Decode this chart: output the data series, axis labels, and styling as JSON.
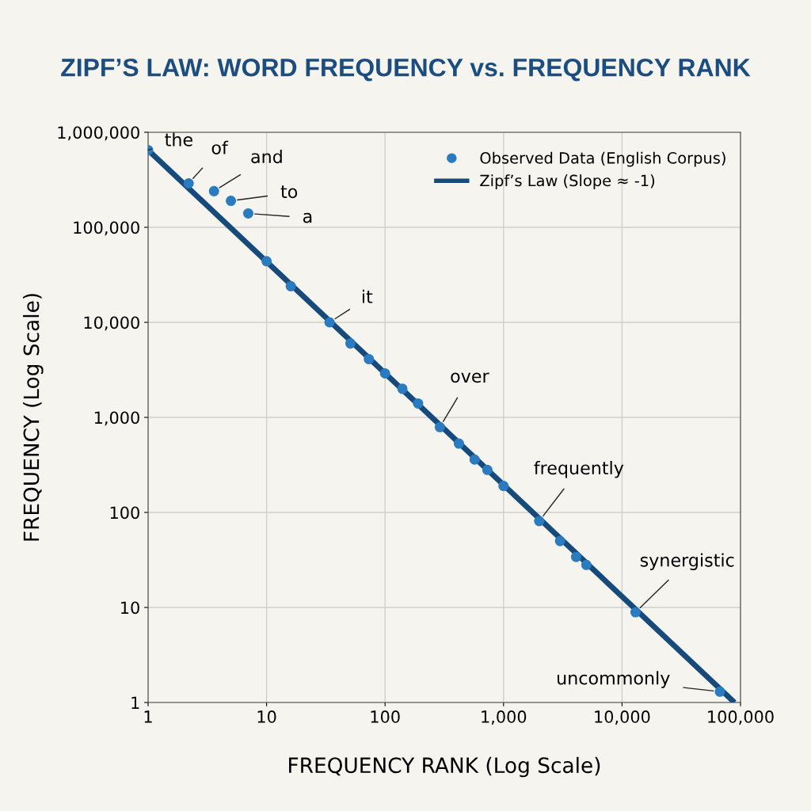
{
  "chart_data": {
    "type": "scatter",
    "title": "ZIPF’S LAW: WORD FREQUENCY vs. FREQUENCY RANK",
    "xlabel": "FREQUENCY RANK (Log Scale)",
    "ylabel": "FREQUENCY (Log Scale)",
    "log": "xy",
    "grid": true,
    "legend": "top right",
    "marker": "circle",
    "xlim": [
      1,
      100000
    ],
    "ylim": [
      1,
      1000000
    ],
    "xticks": [
      1,
      10,
      100,
      {
        "value": 1000,
        "label": "1,000"
      },
      {
        "value": 10000,
        "label": "10,000"
      },
      {
        "value": 100000,
        "label": "100,000"
      }
    ],
    "yticks": [
      1,
      10,
      100,
      {
        "value": 1000,
        "label": "1,000"
      },
      {
        "value": 10000,
        "label": "10,000"
      },
      {
        "value": 100000,
        "label": "100,000"
      },
      {
        "value": 1000000,
        "label": "1,000,000"
      }
    ],
    "series": [
      {
        "name": "Observed Data (English Corpus)",
        "color": "#2a7bbf",
        "x": [
          1,
          2.2,
          3.6,
          5,
          7,
          10,
          16,
          34,
          51,
          73,
          100,
          140,
          190,
          290,
          420,
          570,
          730,
          1000,
          2000,
          3000,
          4100,
          5000,
          13000,
          67000
        ],
        "values": [
          650000,
          290000,
          240000,
          190000,
          140000,
          44000,
          24000,
          10000,
          6000,
          4100,
          2900,
          2000,
          1400,
          790,
          530,
          360,
          280,
          190,
          81,
          50,
          34,
          28,
          8.9,
          1.3
        ]
      },
      {
        "name": "Zipf’s Law (Slope ≈ -1)",
        "type": "line",
        "color": "#154a7a",
        "line_style": "solid",
        "marker": "none",
        "x": [
          1,
          89000
        ],
        "values": [
          650000,
          1
        ]
      }
    ],
    "annotations": [
      {
        "text": "the",
        "x": 1,
        "y": 650000
      },
      {
        "text": "of",
        "x": 2.2,
        "y": 290000
      },
      {
        "text": "and",
        "x": 3.6,
        "y": 240000
      },
      {
        "text": "to",
        "x": 5,
        "y": 190000
      },
      {
        "text": "a",
        "x": 7,
        "y": 140000
      },
      {
        "text": "it",
        "x": 34,
        "y": 10000
      },
      {
        "text": "over",
        "x": 290,
        "y": 790
      },
      {
        "text": "frequently",
        "x": 2000,
        "y": 81
      },
      {
        "text": "synergistic",
        "x": 13000,
        "y": 8.9
      },
      {
        "text": "uncommonly",
        "x": 67000,
        "y": 1.3
      }
    ]
  }
}
